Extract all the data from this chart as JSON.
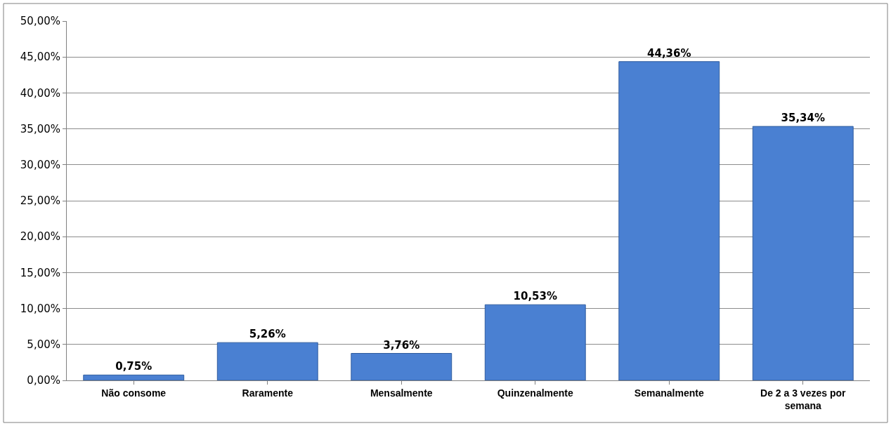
{
  "chart_data": {
    "type": "bar",
    "categories": [
      "Não consome",
      "Raramente",
      "Mensalmente",
      "Quinzenalmente",
      "Semanalmente",
      "De 2 a 3 vezes por semana"
    ],
    "values": [
      0.75,
      5.26,
      3.76,
      10.53,
      44.36,
      35.34
    ],
    "value_labels": [
      "0,75%",
      "5,26%",
      "3,76%",
      "10,53%",
      "44,36%",
      "35,34%"
    ],
    "color": "#4a80d2",
    "ylim": [
      0,
      50
    ],
    "yticks": [
      {
        "value": 0,
        "label": "0,00%"
      },
      {
        "value": 5,
        "label": "5,00%"
      },
      {
        "value": 10,
        "label": "10,00%"
      },
      {
        "value": 15,
        "label": "15,00%"
      },
      {
        "value": 20,
        "label": "20,00%"
      },
      {
        "value": 25,
        "label": "25,00%"
      },
      {
        "value": 30,
        "label": "30,00%"
      },
      {
        "value": 35,
        "label": "35,00%"
      },
      {
        "value": 40,
        "label": "40,00%"
      },
      {
        "value": 45,
        "label": "45,00%"
      },
      {
        "value": 50,
        "label": "50,00%"
      }
    ],
    "grid": "y"
  }
}
